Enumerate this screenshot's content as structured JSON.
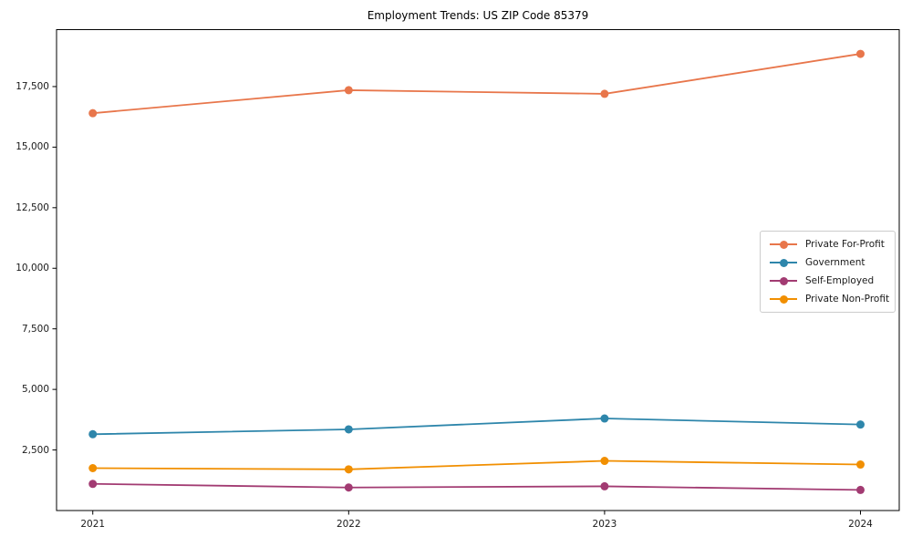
{
  "chart_data": {
    "type": "line",
    "title": "Employment Trends: US ZIP Code 85379",
    "categories": [
      "2021",
      "2022",
      "2023",
      "2024"
    ],
    "series": [
      {
        "name": "Private For-Profit",
        "color": "#E8764B",
        "values": [
          16400,
          17350,
          17200,
          18850
        ]
      },
      {
        "name": "Government",
        "color": "#2E86AB",
        "values": [
          3150,
          3350,
          3800,
          3550
        ]
      },
      {
        "name": "Self-Employed",
        "color": "#A23B72",
        "values": [
          1100,
          950,
          1000,
          850
        ]
      },
      {
        "name": "Private Non-Profit",
        "color": "#F18F01",
        "values": [
          1750,
          1700,
          2050,
          1900
        ]
      }
    ],
    "xlabel": "",
    "ylabel": "",
    "ylim": [
      0,
      19850
    ],
    "yticks": [
      2500,
      5000,
      7500,
      10000,
      12500,
      15000,
      17500
    ],
    "ytick_labels": [
      "2,500",
      "5,000",
      "7,500",
      "10,000",
      "12,500",
      "15,000",
      "17,500"
    ],
    "grid": false,
    "legend_position": "center right",
    "marker": "circle",
    "line_width": 1.8,
    "marker_radius": 4.5,
    "axis_color": "#000000"
  }
}
